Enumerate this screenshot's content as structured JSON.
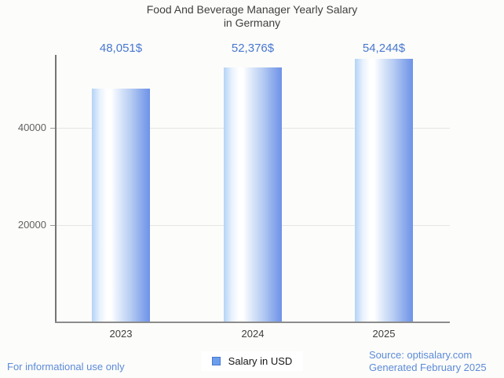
{
  "page": {
    "background_color": "#fcfcfa",
    "accent_blue": "#4878d0",
    "footer_blue": "#5c8bd9"
  },
  "chart": {
    "title_line1": "Food And Beverage Manager Yearly Salary",
    "title_line2": "in Germany"
  },
  "chart_data": {
    "type": "bar",
    "title": "Food And Beverage Manager Yearly Salary in Germany",
    "categories": [
      "2023",
      "2024",
      "2025"
    ],
    "series": [
      {
        "name": "Salary in USD",
        "values": [
          48051,
          52376,
          54244
        ]
      }
    ],
    "value_labels": [
      "48,051$",
      "52,376$",
      "54,244$"
    ],
    "y_ticks": [
      {
        "value": 20000,
        "label": "20000"
      },
      {
        "value": 40000,
        "label": "40000"
      }
    ],
    "ylim": [
      0,
      55000
    ],
    "xlabel": "",
    "ylabel": "",
    "grid": "horizontal",
    "legend_position": "bottom",
    "bar_color_gradient": [
      "#b3d3f6",
      "#ffffff",
      "#6e92e8"
    ],
    "value_label_color": "#4878d0"
  },
  "legend": {
    "label": "Salary in USD",
    "marker_color": "#6d9eeb"
  },
  "footer": {
    "left": "For informational use only",
    "source": "Source: optisalary.com",
    "generated": "Generated February 2025"
  }
}
